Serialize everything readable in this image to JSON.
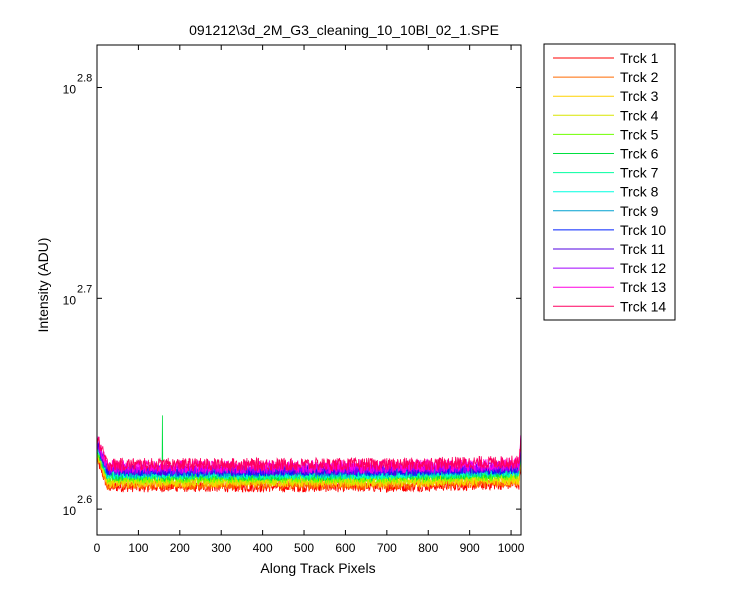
{
  "chart_data": {
    "type": "line",
    "title": "091212\\3d_2M_G3_cleaning_10_10Bl_02_1.SPE",
    "xlabel": "Along Track Pixels",
    "ylabel": "Intensity (ADU)",
    "x_scale": "linear",
    "y_scale": "log",
    "xlim": [
      0,
      1024
    ],
    "ylim": [
      387,
      661
    ],
    "x_ticks": [
      0,
      100,
      200,
      300,
      400,
      500,
      600,
      700,
      800,
      900,
      1000
    ],
    "y_ticks": [
      {
        "base": "10",
        "exponent": "2.6",
        "value": 398.1
      },
      {
        "base": "10",
        "exponent": "2.7",
        "value": 501.2
      },
      {
        "base": "10",
        "exponent": "2.8",
        "value": 631.0
      }
    ],
    "grid": false,
    "legend_position": "outside-right",
    "series": [
      {
        "name": "Trck 1",
        "color": "#ff0000",
        "baseline": 408.0,
        "noise": 2.5
      },
      {
        "name": "Trck 2",
        "color": "#ff6a00",
        "baseline": 409.0,
        "noise": 2.5
      },
      {
        "name": "Trck 3",
        "color": "#ffd200",
        "baseline": 410.0,
        "noise": 2.5
      },
      {
        "name": "Trck 4",
        "color": "#d8e600",
        "baseline": 411.0,
        "noise": 2.5
      },
      {
        "name": "Trck 5",
        "color": "#6fff00",
        "baseline": 412.0,
        "noise": 2.5
      },
      {
        "name": "Trck 6",
        "color": "#00e040",
        "baseline": 413.0,
        "noise": 2.5,
        "spike": {
          "x": 158,
          "y": 441
        }
      },
      {
        "name": "Trck 7",
        "color": "#00ffa0",
        "baseline": 413.5,
        "noise": 2.5
      },
      {
        "name": "Trck 8",
        "color": "#00ffe0",
        "baseline": 414.0,
        "noise": 2.5
      },
      {
        "name": "Trck 9",
        "color": "#00a0d0",
        "baseline": 414.5,
        "noise": 2.5
      },
      {
        "name": "Trck 10",
        "color": "#0020ff",
        "baseline": 415.0,
        "noise": 2.5
      },
      {
        "name": "Trck 11",
        "color": "#5000e0",
        "baseline": 415.5,
        "noise": 2.5
      },
      {
        "name": "Trck 12",
        "color": "#a000ff",
        "baseline": 416.0,
        "noise": 2.5
      },
      {
        "name": "Trck 13",
        "color": "#ff00e0",
        "baseline": 417.0,
        "noise": 3.0
      },
      {
        "name": "Trck 14",
        "color": "#ff0060",
        "baseline": 418.0,
        "noise": 3.0
      }
    ]
  }
}
